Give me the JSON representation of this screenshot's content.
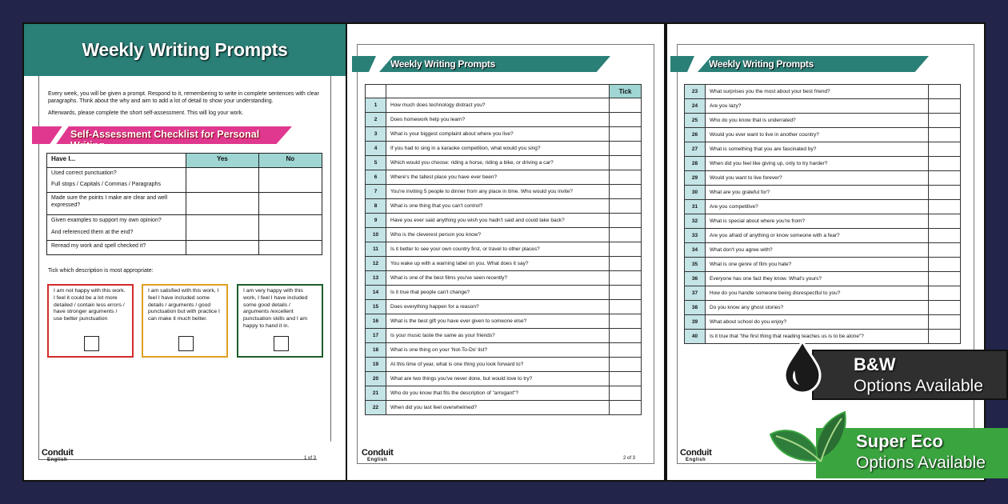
{
  "title": "Weekly Writing Prompts",
  "page1": {
    "intro": [
      "Every week, you will be given a prompt.  Respond to it, remembering to write in complete sentences with clear paragraphs. Think about the why and aim to add a lot of detail to show your understanding.",
      "Afterwards, please complete the short self-assessment. This will log your work."
    ],
    "checklist_title": "Self-Assessment Checklist for Personal Writing",
    "table_headers": [
      "Have I...",
      "Yes",
      "No"
    ],
    "rows": [
      [
        "Used correct punctuation?",
        "Full stops / Capitals / Commas / Paragraphs"
      ],
      [
        "Made sure the points I make are clear and well expressed?"
      ],
      [
        "Given examples to support my own opinion?",
        "And referenced them at the end?"
      ],
      [
        "Reread my work and spell checked it?"
      ]
    ],
    "tick_instruction": "Tick which description is most appropriate:",
    "descriptions": [
      {
        "text": "I am not happy with this work. I feel it could be a lot more detailed / contain less errors / have stronger arguments / use better punctuation",
        "color": "#d42a2a"
      },
      {
        "text": "I am satisfied with this work, I feel I have included some details / arguments / good punctuation but with practice I can make it much better.",
        "color": "#e0a020"
      },
      {
        "text": "I am very happy with this work, I feel I have included some good details / arguments /excellent punctuation skills and I am happy to hand it in.",
        "color": "#1f5e2a"
      }
    ],
    "page_number": "1 of 3"
  },
  "logo": {
    "name": "Conduit",
    "sub": "English"
  },
  "tick_header": "Tick",
  "page2": {
    "page_number": "2 of 3",
    "prompts": [
      "How much does technology distract you?",
      "Does homework help you learn?",
      "What is your biggest complaint about where you live?",
      "If you had to sing in a karaoke competition, what would you sing?",
      "Which would you choose: riding a horse, riding a bike, or driving a car?",
      "Where's the tallest place you have ever been?",
      "You're inviting 5 people to dinner from any place in time. Who would you invite?",
      "What is one thing that you can't control?",
      "Have you ever said anything you wish you hadn't said and could take back?",
      "Who is the cleverest person you know?",
      "Is it better to see your own country first, or travel to other places?",
      "You wake up with a warning label on you. What does it say?",
      "What is one of the best films you've seen recently?",
      "Is it true that people can't change?",
      "Does everything happen for a reason?",
      "What is the best gift you have ever given to someone else?",
      "Is your music taste the same as your friends?",
      "What is one thing on your 'Not-To-Do' list?",
      "At this time of year, what is one thing you look forward to?",
      "What are two things you've never done, but would love to try?",
      "Who do you know that fits the description of \"arrogant\"?",
      "When did you last feel overwhelmed?"
    ]
  },
  "page3": {
    "prompts": [
      "What surprises you the most about your best friend?",
      "Are you lazy?",
      "Who do you know that is underrated?",
      "Would you ever want to live in another country?",
      "What is something that you are fascinated by?",
      "When did you feel like giving up, only to try harder?",
      "Would you want to live forever?",
      "What are you grateful for?",
      "Are you competitive?",
      "What is special about where you're from?",
      "Are you afraid of anything or know someone with a fear?",
      "What don't you agree with?",
      "What is one genre of film you hate?",
      "Everyone has one fact they know. What's yours?",
      "How do you handle someone being disrespectful to you?",
      "Do you know any ghost stories?",
      "What about school do you enjoy?",
      "Is it true that \"the first thing that reading teaches us is to be alone\"?"
    ]
  },
  "badges": {
    "bw": {
      "title": "B&W",
      "sub": "Options Available"
    },
    "eco": {
      "title": "Super Eco",
      "sub": "Options Available"
    }
  },
  "colors": {
    "background": "#22244a",
    "teal": "#2a7f77",
    "pink": "#e0388e",
    "eco_green": "#3aa53f"
  }
}
